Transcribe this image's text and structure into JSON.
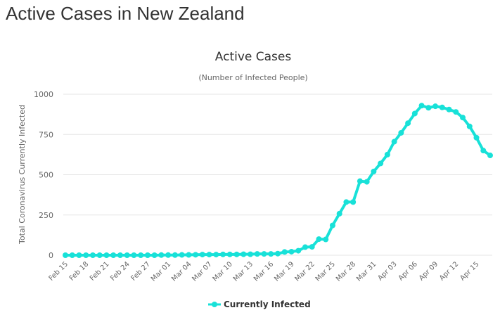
{
  "page": {
    "heading": "Active Cases in New Zealand"
  },
  "chart_data": {
    "type": "line",
    "title": "Active Cases",
    "subtitle": "(Number of Infected People)",
    "xlabel": "",
    "ylabel": "Total Coronavirus Currently Infected",
    "ylim": [
      0,
      1000
    ],
    "yticks": [
      0,
      250,
      500,
      750,
      1000
    ],
    "xtick_labels": [
      "Feb 15",
      "Feb 18",
      "Feb 21",
      "Feb 24",
      "Feb 27",
      "Mar 01",
      "Mar 04",
      "Mar 07",
      "Mar 10",
      "Mar 13",
      "Mar 16",
      "Mar 19",
      "Mar 22",
      "Mar 25",
      "Mar 28",
      "Mar 31",
      "Apr 03",
      "Apr 06",
      "Apr 09",
      "Apr 12",
      "Apr 15"
    ],
    "grid": true,
    "legend_position": "bottom-center",
    "colors": {
      "series": "#18e1d8",
      "grid": "#e6e6e6",
      "text": "#666666",
      "title": "#333333"
    },
    "x": [
      "Feb 15",
      "Feb 16",
      "Feb 17",
      "Feb 18",
      "Feb 19",
      "Feb 20",
      "Feb 21",
      "Feb 22",
      "Feb 23",
      "Feb 24",
      "Feb 25",
      "Feb 26",
      "Feb 27",
      "Feb 28",
      "Feb 29",
      "Mar 01",
      "Mar 02",
      "Mar 03",
      "Mar 04",
      "Mar 05",
      "Mar 06",
      "Mar 07",
      "Mar 08",
      "Mar 09",
      "Mar 10",
      "Mar 11",
      "Mar 12",
      "Mar 13",
      "Mar 14",
      "Mar 15",
      "Mar 16",
      "Mar 17",
      "Mar 18",
      "Mar 19",
      "Mar 20",
      "Mar 21",
      "Mar 22",
      "Mar 23",
      "Mar 24",
      "Mar 25",
      "Mar 26",
      "Mar 27",
      "Mar 28",
      "Mar 29",
      "Mar 30",
      "Mar 31",
      "Apr 01",
      "Apr 02",
      "Apr 03",
      "Apr 04",
      "Apr 05",
      "Apr 06",
      "Apr 07",
      "Apr 08",
      "Apr 09",
      "Apr 10",
      "Apr 11",
      "Apr 12",
      "Apr 13",
      "Apr 14",
      "Apr 15",
      "Apr 16",
      "Apr 17"
    ],
    "series": [
      {
        "name": "Currently Infected",
        "values": [
          0,
          0,
          0,
          0,
          0,
          0,
          0,
          0,
          0,
          0,
          0,
          0,
          0,
          0,
          1,
          1,
          1,
          2,
          2,
          3,
          4,
          4,
          4,
          5,
          5,
          5,
          6,
          6,
          8,
          8,
          8,
          10,
          20,
          22,
          28,
          50,
          52,
          100,
          98,
          185,
          258,
          330,
          330,
          460,
          456,
          520,
          570,
          625,
          705,
          760,
          820,
          880,
          929,
          916,
          925,
          918,
          905,
          890,
          855,
          800,
          730,
          650,
          620
        ]
      }
    ]
  }
}
